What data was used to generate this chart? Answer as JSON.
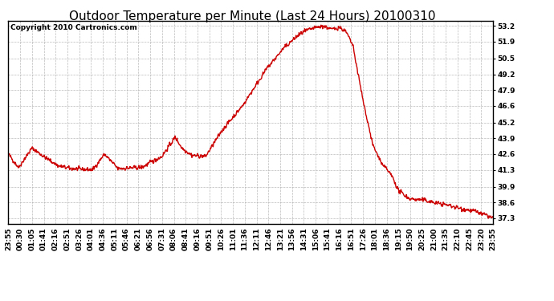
{
  "title": "Outdoor Temperature per Minute (Last 24 Hours) 20100310",
  "copyright_text": "Copyright 2010 Cartronics.com",
  "line_color": "#cc0000",
  "background_color": "#ffffff",
  "plot_bg_color": "#ffffff",
  "grid_color": "#aaaaaa",
  "ytick_labels": [
    "37.3",
    "38.6",
    "39.9",
    "41.3",
    "42.6",
    "43.9",
    "45.2",
    "46.6",
    "47.9",
    "49.2",
    "50.5",
    "51.9",
    "53.2"
  ],
  "ytick_values": [
    37.3,
    38.6,
    39.9,
    41.3,
    42.6,
    43.9,
    45.2,
    46.6,
    47.9,
    49.2,
    50.5,
    51.9,
    53.2
  ],
  "ylim": [
    36.8,
    53.6
  ],
  "xtick_labels": [
    "23:55",
    "00:30",
    "01:05",
    "01:41",
    "02:16",
    "02:51",
    "03:26",
    "04:01",
    "04:36",
    "05:11",
    "05:46",
    "06:21",
    "06:56",
    "07:31",
    "08:06",
    "08:41",
    "09:16",
    "09:51",
    "10:26",
    "11:01",
    "11:36",
    "12:11",
    "12:46",
    "13:21",
    "13:56",
    "14:31",
    "15:06",
    "15:41",
    "16:16",
    "16:51",
    "17:26",
    "18:01",
    "18:36",
    "19:15",
    "19:50",
    "20:25",
    "21:00",
    "21:35",
    "22:10",
    "22:45",
    "23:20",
    "23:55"
  ],
  "line_width": 1.0,
  "title_fontsize": 11,
  "tick_fontsize": 6.5,
  "copyright_fontsize": 6.5
}
